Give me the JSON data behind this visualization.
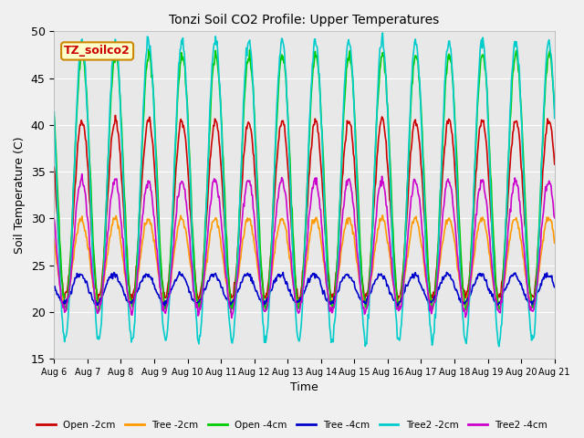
{
  "title": "Tonzi Soil CO2 Profile: Upper Temperatures",
  "ylabel": "Soil Temperature (C)",
  "xlabel": "Time",
  "annotation": "TZ_soilco2",
  "ylim": [
    15,
    50
  ],
  "n_days": 15,
  "x_tick_labels": [
    "Aug 6",
    "Aug 7",
    "Aug 8",
    "Aug 9",
    "Aug 10",
    "Aug 11",
    "Aug 12",
    "Aug 13",
    "Aug 14",
    "Aug 15",
    "Aug 16",
    "Aug 17",
    "Aug 18",
    "Aug 19",
    "Aug 20",
    "Aug 21"
  ],
  "series_order": [
    "Open -2cm",
    "Tree -2cm",
    "Open -4cm",
    "Tree -4cm",
    "Tree2 -2cm",
    "Tree2 -4cm"
  ],
  "series": {
    "Open -2cm": {
      "color": "#cc0000",
      "lw": 1.2
    },
    "Tree -2cm": {
      "color": "#ff9900",
      "lw": 1.2
    },
    "Open -4cm": {
      "color": "#00cc00",
      "lw": 1.2
    },
    "Tree -4cm": {
      "color": "#0000cc",
      "lw": 1.2
    },
    "Tree2 -2cm": {
      "color": "#00cccc",
      "lw": 1.2
    },
    "Tree2 -4cm": {
      "color": "#cc00cc",
      "lw": 1.2
    }
  },
  "fig_bg": "#f0f0f0",
  "plot_bg": "#e8e8e8",
  "grid_color": "#ffffff"
}
